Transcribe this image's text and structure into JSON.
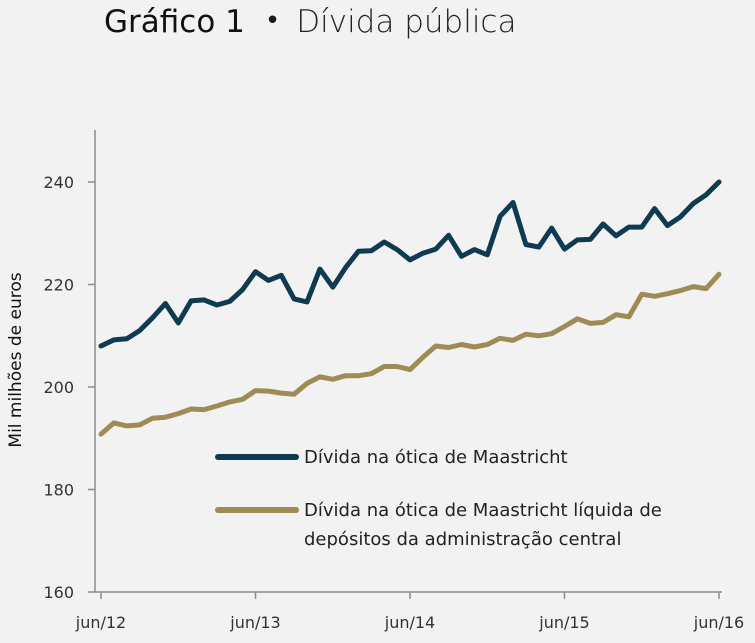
{
  "header": {
    "number": "Gráfico 1",
    "bullet": "•",
    "name": "Dívida pública"
  },
  "chart_data": {
    "type": "line",
    "title": "Dívida pública",
    "xlabel": "",
    "ylabel": "Mil milhões de euros",
    "ylim": [
      160,
      250
    ],
    "yticks": [
      160,
      180,
      200,
      220,
      240
    ],
    "xlim": [
      0,
      48
    ],
    "xticks": [
      {
        "pos": 0,
        "label": "jun/12"
      },
      {
        "pos": 12,
        "label": "jun/13"
      },
      {
        "pos": 24,
        "label": "jun/14"
      },
      {
        "pos": 36,
        "label": "jun/15"
      },
      {
        "pos": 48,
        "label": "jun/16"
      }
    ],
    "series": [
      {
        "name": "Dívida na ótica de Maastricht",
        "color": "#0e3a52",
        "values": [
          208,
          209.2,
          209.4,
          211,
          213.5,
          216.3,
          212.5,
          216.8,
          217,
          216,
          216.7,
          219,
          222.5,
          220.8,
          221.8,
          217.2,
          216.6,
          223,
          219.5,
          223.3,
          226.5,
          226.6,
          228.3,
          226.8,
          224.8,
          226.1,
          226.9,
          229.6,
          225.5,
          226.8,
          225.8,
          233.3,
          236,
          227.8,
          227.3,
          231,
          226.9,
          228.7,
          228.8,
          231.8,
          229.5,
          231.2,
          231.2,
          234.8,
          231.5,
          233.2,
          235.8,
          237.5,
          240
        ]
      },
      {
        "name": "Dívida na ótica de Maastricht líquida de depósitos da administração central",
        "color": "#a08a55",
        "values": [
          190.8,
          193,
          192.4,
          192.6,
          193.9,
          194.1,
          194.8,
          195.7,
          195.6,
          196.3,
          197.1,
          197.6,
          199.3,
          199.2,
          198.8,
          198.6,
          200.7,
          202,
          201.5,
          202.2,
          202.2,
          202.6,
          204,
          204,
          203.4,
          205.8,
          208,
          207.7,
          208.3,
          207.8,
          208.3,
          209.5,
          209.1,
          210.3,
          210,
          210.4,
          211.8,
          213.3,
          212.4,
          212.6,
          214.1,
          213.7,
          218.1,
          217.7,
          218.2,
          218.8,
          219.6,
          219.2,
          222
        ]
      }
    ],
    "legend": {
      "position": "lower-right",
      "entries": [
        {
          "lines": [
            "Dívida na ótica de Maastricht"
          ],
          "color": "#0e3a52"
        },
        {
          "lines": [
            "Dívida na ótica de Maastricht líquida de",
            "depósitos da administração central"
          ],
          "color": "#a08a55"
        }
      ]
    }
  }
}
